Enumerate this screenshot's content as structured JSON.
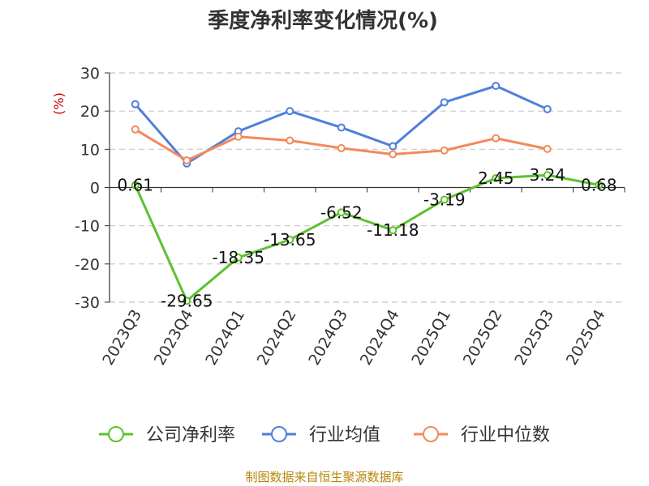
{
  "chart_data": {
    "type": "line",
    "title": "季度净利率变化情况(%)",
    "ylabel": "(%)",
    "ylim": [
      -30,
      30
    ],
    "yticks": [
      30,
      20,
      10,
      0,
      -10,
      -20,
      -30
    ],
    "grid": true,
    "legend_position": "bottom",
    "categories": [
      "2023Q3",
      "2023Q4",
      "2024Q1",
      "2024Q2",
      "2024Q3",
      "2024Q4",
      "2025Q1",
      "2025Q2",
      "2025Q3",
      "2025Q4"
    ],
    "series": [
      {
        "name": "公司净利率",
        "color": "#5cc12e",
        "values": [
          0.61,
          -29.65,
          -18.35,
          -13.65,
          -6.52,
          -11.18,
          -3.19,
          2.45,
          3.24,
          0.68
        ],
        "labels": [
          "0.61",
          "-29.65",
          "-18.35",
          "-13.65",
          "-6.52",
          "-11.18",
          "-3.19",
          "2.45",
          "3.24",
          "0.68"
        ]
      },
      {
        "name": "行业均值",
        "color": "#4f7fdc",
        "values": [
          21.8,
          6.3,
          14.7,
          20.0,
          15.7,
          10.8,
          22.3,
          26.6,
          20.5,
          null
        ]
      },
      {
        "name": "行业中位数",
        "color": "#f3895a",
        "values": [
          15.2,
          7.1,
          13.3,
          12.3,
          10.3,
          8.7,
          9.7,
          12.9,
          10.1,
          null
        ]
      }
    ],
    "source": "制图数据来自恒生聚源数据库"
  }
}
